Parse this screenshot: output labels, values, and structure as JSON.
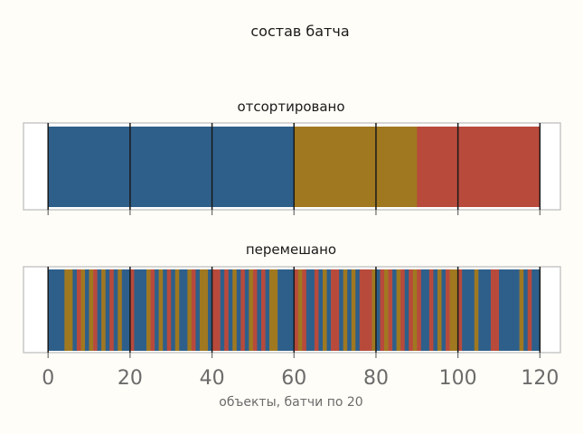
{
  "chart_data": {
    "type": "bar",
    "title": "состав батча",
    "xlabel": "объекты, батчи по 20",
    "xlim": [
      -6,
      125
    ],
    "xticks": [
      0,
      20,
      40,
      60,
      80,
      100,
      120
    ],
    "batch_size": 20,
    "n_items": 120,
    "colors": {
      "blue": "#2e5f8a",
      "gold": "#a07820",
      "red": "#b84a3c",
      "frame": "#c8c8c8",
      "batch_line": "#1a1a1a"
    },
    "panels": [
      {
        "title": "отсортировано",
        "segments": [
          {
            "start": 0,
            "end": 60,
            "class": "blue"
          },
          {
            "start": 60,
            "end": 90,
            "class": "gold"
          },
          {
            "start": 90,
            "end": 120,
            "class": "red"
          }
        ]
      },
      {
        "title": "перемешано",
        "segments": [
          {
            "start": 0,
            "end": 4,
            "class": "blue"
          },
          {
            "start": 4,
            "end": 6,
            "class": "gold"
          },
          {
            "start": 6,
            "end": 7,
            "class": "blue"
          },
          {
            "start": 7,
            "end": 8,
            "class": "red"
          },
          {
            "start": 8,
            "end": 9,
            "class": "gold"
          },
          {
            "start": 9,
            "end": 10,
            "class": "blue"
          },
          {
            "start": 10,
            "end": 11,
            "class": "gold"
          },
          {
            "start": 11,
            "end": 12,
            "class": "red"
          },
          {
            "start": 12,
            "end": 13,
            "class": "blue"
          },
          {
            "start": 13,
            "end": 14,
            "class": "gold"
          },
          {
            "start": 14,
            "end": 15,
            "class": "blue"
          },
          {
            "start": 15,
            "end": 16,
            "class": "red"
          },
          {
            "start": 16,
            "end": 17,
            "class": "blue"
          },
          {
            "start": 17,
            "end": 18,
            "class": "gold"
          },
          {
            "start": 18,
            "end": 20,
            "class": "blue"
          },
          {
            "start": 20,
            "end": 21,
            "class": "red"
          },
          {
            "start": 21,
            "end": 24,
            "class": "blue"
          },
          {
            "start": 24,
            "end": 25,
            "class": "gold"
          },
          {
            "start": 25,
            "end": 26,
            "class": "red"
          },
          {
            "start": 26,
            "end": 27,
            "class": "blue"
          },
          {
            "start": 27,
            "end": 28,
            "class": "gold"
          },
          {
            "start": 28,
            "end": 29,
            "class": "blue"
          },
          {
            "start": 29,
            "end": 30,
            "class": "red"
          },
          {
            "start": 30,
            "end": 31,
            "class": "blue"
          },
          {
            "start": 31,
            "end": 32,
            "class": "gold"
          },
          {
            "start": 32,
            "end": 34,
            "class": "blue"
          },
          {
            "start": 34,
            "end": 35,
            "class": "gold"
          },
          {
            "start": 35,
            "end": 36,
            "class": "red"
          },
          {
            "start": 36,
            "end": 37,
            "class": "blue"
          },
          {
            "start": 37,
            "end": 39,
            "class": "gold"
          },
          {
            "start": 39,
            "end": 40,
            "class": "blue"
          },
          {
            "start": 40,
            "end": 42,
            "class": "red"
          },
          {
            "start": 42,
            "end": 43,
            "class": "blue"
          },
          {
            "start": 43,
            "end": 44,
            "class": "red"
          },
          {
            "start": 44,
            "end": 45,
            "class": "blue"
          },
          {
            "start": 45,
            "end": 46,
            "class": "gold"
          },
          {
            "start": 46,
            "end": 47,
            "class": "blue"
          },
          {
            "start": 47,
            "end": 48,
            "class": "red"
          },
          {
            "start": 48,
            "end": 49,
            "class": "blue"
          },
          {
            "start": 49,
            "end": 50,
            "class": "gold"
          },
          {
            "start": 50,
            "end": 51,
            "class": "red"
          },
          {
            "start": 51,
            "end": 52,
            "class": "blue"
          },
          {
            "start": 52,
            "end": 53,
            "class": "red"
          },
          {
            "start": 53,
            "end": 54,
            "class": "blue"
          },
          {
            "start": 54,
            "end": 56,
            "class": "gold"
          },
          {
            "start": 56,
            "end": 60,
            "class": "blue"
          },
          {
            "start": 60,
            "end": 61,
            "class": "red"
          },
          {
            "start": 61,
            "end": 62,
            "class": "gold"
          },
          {
            "start": 62,
            "end": 63,
            "class": "red"
          },
          {
            "start": 63,
            "end": 65,
            "class": "blue"
          },
          {
            "start": 65,
            "end": 66,
            "class": "red"
          },
          {
            "start": 66,
            "end": 67,
            "class": "blue"
          },
          {
            "start": 67,
            "end": 68,
            "class": "gold"
          },
          {
            "start": 68,
            "end": 69,
            "class": "blue"
          },
          {
            "start": 69,
            "end": 71,
            "class": "red"
          },
          {
            "start": 71,
            "end": 72,
            "class": "blue"
          },
          {
            "start": 72,
            "end": 73,
            "class": "gold"
          },
          {
            "start": 73,
            "end": 74,
            "class": "blue"
          },
          {
            "start": 74,
            "end": 75,
            "class": "gold"
          },
          {
            "start": 75,
            "end": 76,
            "class": "blue"
          },
          {
            "start": 76,
            "end": 79,
            "class": "red"
          },
          {
            "start": 79,
            "end": 80,
            "class": "gold"
          },
          {
            "start": 80,
            "end": 81,
            "class": "blue"
          },
          {
            "start": 81,
            "end": 82,
            "class": "red"
          },
          {
            "start": 82,
            "end": 83,
            "class": "gold"
          },
          {
            "start": 83,
            "end": 84,
            "class": "red"
          },
          {
            "start": 84,
            "end": 85,
            "class": "blue"
          },
          {
            "start": 85,
            "end": 86,
            "class": "gold"
          },
          {
            "start": 86,
            "end": 87,
            "class": "red"
          },
          {
            "start": 87,
            "end": 88,
            "class": "blue"
          },
          {
            "start": 88,
            "end": 89,
            "class": "red"
          },
          {
            "start": 89,
            "end": 90,
            "class": "gold"
          },
          {
            "start": 90,
            "end": 91,
            "class": "red"
          },
          {
            "start": 91,
            "end": 93,
            "class": "blue"
          },
          {
            "start": 93,
            "end": 94,
            "class": "red"
          },
          {
            "start": 94,
            "end": 95,
            "class": "blue"
          },
          {
            "start": 95,
            "end": 96,
            "class": "gold"
          },
          {
            "start": 96,
            "end": 97,
            "class": "blue"
          },
          {
            "start": 97,
            "end": 98,
            "class": "red"
          },
          {
            "start": 98,
            "end": 100,
            "class": "gold"
          },
          {
            "start": 100,
            "end": 101,
            "class": "red"
          },
          {
            "start": 101,
            "end": 104,
            "class": "blue"
          },
          {
            "start": 104,
            "end": 105,
            "class": "gold"
          },
          {
            "start": 105,
            "end": 108,
            "class": "blue"
          },
          {
            "start": 108,
            "end": 110,
            "class": "red"
          },
          {
            "start": 110,
            "end": 115,
            "class": "blue"
          },
          {
            "start": 115,
            "end": 116,
            "class": "gold"
          },
          {
            "start": 116,
            "end": 117,
            "class": "blue"
          },
          {
            "start": 117,
            "end": 118,
            "class": "red"
          },
          {
            "start": 118,
            "end": 120,
            "class": "blue"
          }
        ]
      }
    ]
  }
}
